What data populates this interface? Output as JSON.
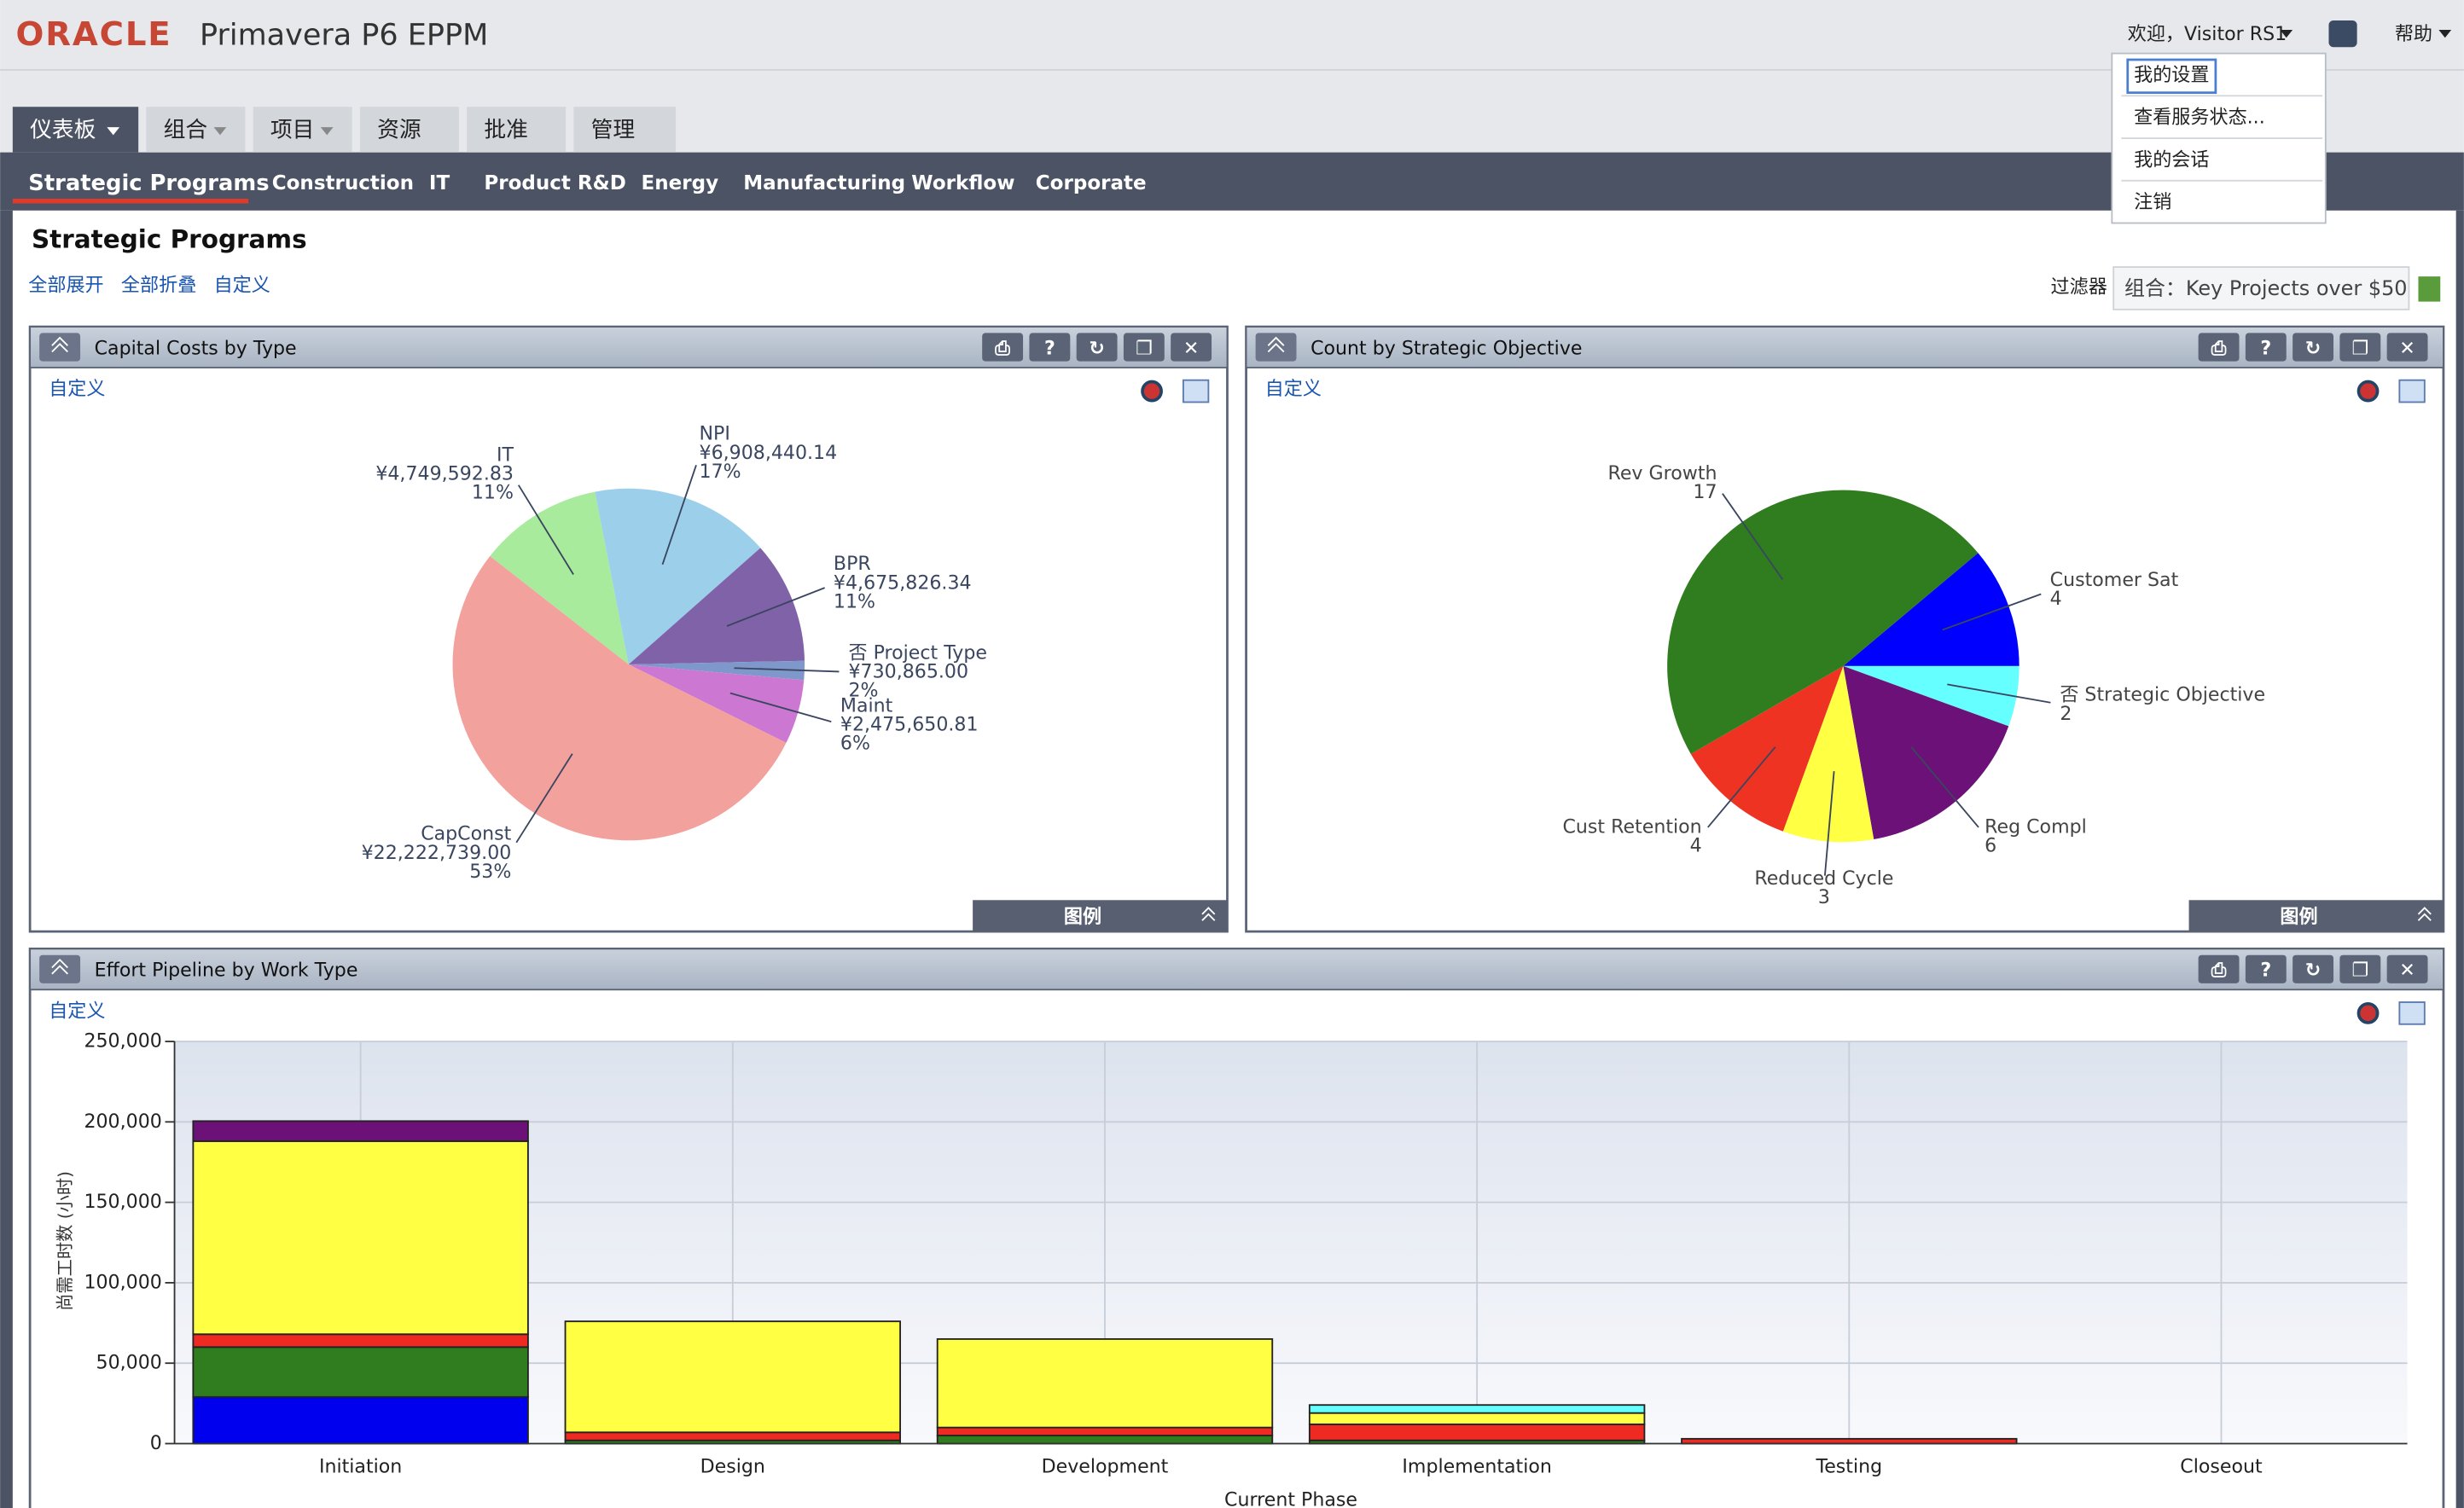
{
  "header": {
    "logo": "ORACLE",
    "product": "Primavera P6 EPPM",
    "user": "欢迎，Visitor RS1",
    "help": "帮助"
  },
  "user_menu": [
    "我的设置",
    "查看服务状态...",
    "我的会话",
    "注销"
  ],
  "tabs": [
    "仪表板",
    "组合",
    "项目",
    "资源",
    "批准",
    "管理"
  ],
  "subtabs": [
    "Strategic Programs",
    "Construction",
    "IT",
    "Product R&D",
    "Energy",
    "Manufacturing",
    "Workflow",
    "Corporate"
  ],
  "page": {
    "title": "Strategic Programs",
    "links": [
      "全部展开",
      "全部折叠",
      "自定义"
    ],
    "filter_label": "过滤器",
    "filter_value": "组合：Key Projects over $50"
  },
  "panels": [
    {
      "link": "自定义",
      "legend": "图例"
    },
    {
      "link": "自定义",
      "legend": "图例"
    },
    {
      "link": "自定义"
    }
  ],
  "chart_data": [
    {
      "type": "pie",
      "title": "Capital Costs by Type",
      "categories": [
        "IT",
        "NPI",
        "BPR",
        "否 Project Type",
        "Maint",
        "CapConst"
      ],
      "values": [
        4749592.83,
        6908440.14,
        4675826.34,
        730865.0,
        2475650.81,
        22222739.0
      ],
      "value_labels": [
        "¥4,749,592.83",
        "¥6,908,440.14",
        "¥4,675,826.34",
        "¥730,865.00",
        "¥2,475,650.81",
        "¥22,222,739.00"
      ],
      "percents": [
        11,
        17,
        11,
        2,
        6,
        53
      ],
      "percent_labels": [
        "11%",
        "17%",
        "11%",
        "2%",
        "6%",
        "53%"
      ],
      "colors": [
        "#a8eb9c",
        "#9ccfea",
        "#8062a8",
        "#7f98cc",
        "#cc78d2",
        "#f2a19d"
      ]
    },
    {
      "type": "pie",
      "title": "Count by Strategic Objective",
      "categories": [
        "Customer Sat",
        "否 Strategic Objective",
        "Reg Compl",
        "Reduced Cycle",
        "Cust Retention",
        "Rev Growth"
      ],
      "values": [
        4,
        2,
        6,
        3,
        4,
        17
      ],
      "colors": [
        "#0000ff",
        "#66ffff",
        "#6b1177",
        "#ffff44",
        "#ee3322",
        "#2f7d1f"
      ]
    },
    {
      "type": "bar",
      "title": "Effort Pipeline by Work Type",
      "stacked": true,
      "categories": [
        "Initiation",
        "Design",
        "Development",
        "Implementation",
        "Testing",
        "Closeout"
      ],
      "x_label": "Current Phase",
      "y_label": "尚需工时数 (小时)",
      "ylim": [
        0,
        250000
      ],
      "yticks": [
        0,
        {
          "value": 50000,
          "label": "50,000"
        },
        {
          "value": 100000,
          "label": "100,000"
        },
        {
          "value": 150000,
          "label": "150,000"
        },
        {
          "value": 200000,
          "label": "200,000"
        },
        {
          "value": 250000,
          "label": "250,000"
        }
      ],
      "grid": true,
      "series": [
        {
          "color": "#0000ee",
          "values": [
            29000,
            0,
            0,
            0,
            0,
            0
          ]
        },
        {
          "color": "#2f7d1f",
          "values": [
            31000,
            2000,
            5000,
            2000,
            0,
            0
          ]
        },
        {
          "color": "#ee2a22",
          "values": [
            8000,
            5000,
            5000,
            10000,
            3000,
            0
          ]
        },
        {
          "color": "#ffff44",
          "values": [
            120000,
            69000,
            55000,
            7000,
            0,
            0
          ]
        },
        {
          "color": "#66ffff",
          "values": [
            0,
            0,
            0,
            5000,
            0,
            0
          ]
        },
        {
          "color": "#6b1177",
          "values": [
            12500,
            0,
            0,
            0,
            0,
            0
          ]
        }
      ]
    }
  ]
}
